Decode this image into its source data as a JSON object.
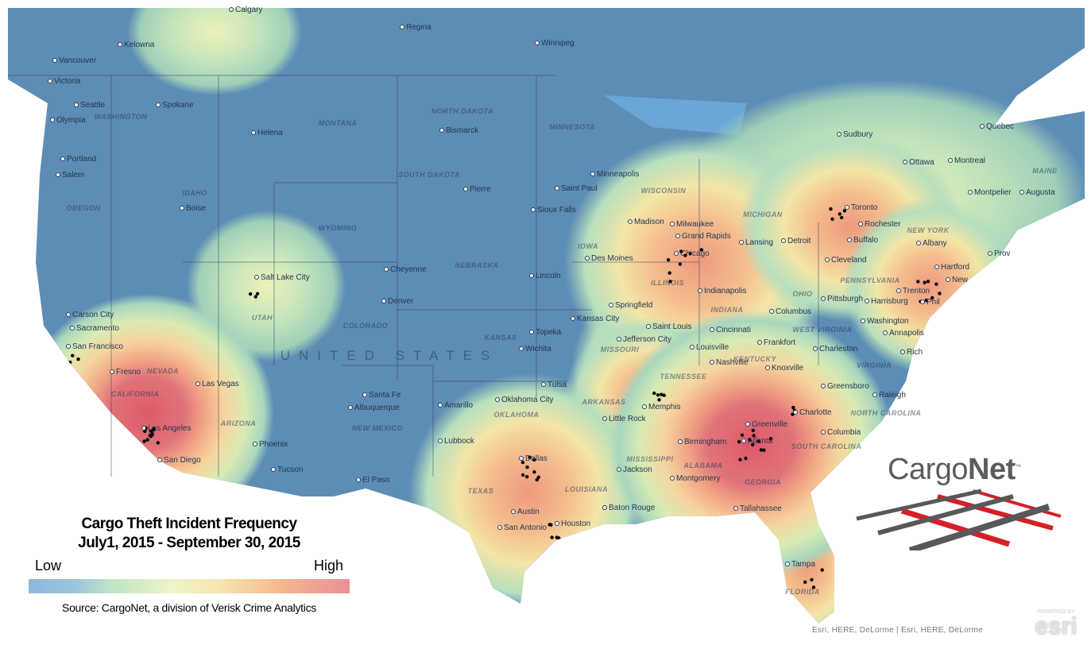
{
  "legend": {
    "title": "Cargo Theft  Incident Frequency",
    "period": "July1, 2015 - September 30, 2015",
    "low_label": "Low",
    "high_label": "High",
    "source": "Source: CargoNet, a division of Verisk Crime Analytics",
    "scale_colors": [
      "#8fb6dc",
      "#bde3c6",
      "#eef5c8",
      "#f4b98e",
      "#e98f94"
    ]
  },
  "country_label": "UNITED STATES",
  "cities": [
    "Calgary",
    "Regina",
    "Winnipeg",
    "Kelowna",
    "Vancouver",
    "Victoria",
    "Seattle",
    "Olympia",
    "Spokane",
    "Helena",
    "Bismarck",
    "Portland",
    "Salem",
    "Minneapolis",
    "Saint Paul",
    "Pierre",
    "Boise",
    "Sioux Falls",
    "Sudbury",
    "Ottawa",
    "Montreal",
    "Quebec",
    "Montpelier",
    "Augusta",
    "Toronto",
    "Rochester",
    "Buffalo",
    "Albany",
    "Madison",
    "Milwaukee",
    "Grand Rapids",
    "Lansing",
    "Detroit",
    "Chicago",
    "Cleveland",
    "Des Moines",
    "Cheyenne",
    "Lincoln",
    "Salt Lake City",
    "Denver",
    "Hartford",
    "Trenton",
    "Harrisburg",
    "Phil",
    "Pittsburgh",
    "Springfield",
    "Indianapolis",
    "Columbus",
    "Kansas City",
    "Topeka",
    "Wichita",
    "Saint Louis",
    "Cincinnati",
    "Jefferson City",
    "Washington",
    "Annapolis",
    "Frankfort",
    "Charleston",
    "Louisville",
    "Carson City",
    "Sacramento",
    "San Francisco",
    "Fresno",
    "Las Vegas",
    "Rich",
    "Nashville",
    "Knoxville",
    "Greensboro",
    "Raleigh",
    "Tulsa",
    "Oklahoma City",
    "Amarillo",
    "Santa Fe",
    "Albuquerque",
    "Little Rock",
    "Memphis",
    "Charlotte",
    "Greenville",
    "Atlanta",
    "Birmingham",
    "Columbia",
    "Los Angeles",
    "San Diego",
    "Phoenix",
    "Tucson",
    "Lubbock",
    "Dallas",
    "El Paso",
    "Jackson",
    "Montgomery",
    "Austin",
    "San Antonio",
    "Houston",
    "Baton Rouge",
    "Tallahassee",
    "Tampa",
    "Prov",
    "New"
  ],
  "states": [
    "WASHINGTON",
    "OREGON",
    "IDAHO",
    "MONTANA",
    "WYOMING",
    "NORTH DAKOTA",
    "SOUTH DAKOTA",
    "NEBRASKA",
    "MINNESOTA",
    "IOWA",
    "NEVADA",
    "UTAH",
    "COLORADO",
    "KANSAS",
    "MISSOURI",
    "ILLINOIS",
    "INDIANA",
    "OHIO",
    "MICHIGAN",
    "WISCONSIN",
    "NEW YORK",
    "PENNSYLVANIA",
    "CALIFORNIA",
    "ARIZONA",
    "NEW MEXICO",
    "OKLAHOMA",
    "TEXAS",
    "ARKANSAS",
    "TENNESSEE",
    "KENTUCKY",
    "WEST VIRGINIA",
    "VIRGINIA",
    "NORTH CAROLINA",
    "SOUTH CAROLINA",
    "GEORGIA",
    "ALABAMA",
    "MISSISSIPPI",
    "LOUISIANA",
    "FLORIDA",
    "MAINE"
  ],
  "logo": {
    "part1": "Cargo",
    "part2": "Net",
    "tm": "™"
  },
  "attribution": "Esri, HERE, DeLorme | Esri, HERE, DeLorme",
  "esri_badge": {
    "powered": "POWERED BY",
    "brand": "esri"
  },
  "colors": {
    "base": "#5d8db5",
    "low": "#9fd0b4",
    "mid": "#f2eeb0",
    "high": "#e0636a"
  }
}
